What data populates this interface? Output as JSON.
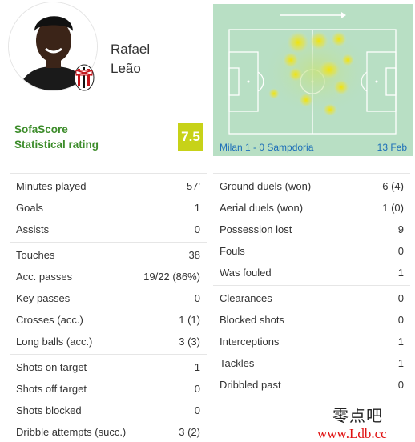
{
  "player": {
    "first_name": "Rafael",
    "last_name": "Leão"
  },
  "rating": {
    "label_line1": "SofaScore",
    "label_line2": "Statistical rating",
    "value": "7.5",
    "color": "#c7d218"
  },
  "match": {
    "label": "Milan 1 - 0 Sampdoria",
    "date": "13 Feb"
  },
  "stats_left": [
    [
      {
        "label": "Minutes played",
        "value": "57'"
      },
      {
        "label": "Goals",
        "value": "1"
      },
      {
        "label": "Assists",
        "value": "0"
      }
    ],
    [
      {
        "label": "Touches",
        "value": "38"
      },
      {
        "label": "Acc. passes",
        "value": "19/22 (86%)"
      },
      {
        "label": "Key passes",
        "value": "0"
      },
      {
        "label": "Crosses (acc.)",
        "value": "1 (1)"
      },
      {
        "label": "Long balls (acc.)",
        "value": "3 (3)"
      }
    ],
    [
      {
        "label": "Shots on target",
        "value": "1"
      },
      {
        "label": "Shots off target",
        "value": "0"
      },
      {
        "label": "Shots blocked",
        "value": "0"
      },
      {
        "label": "Dribble attempts (succ.)",
        "value": "3 (2)"
      }
    ]
  ],
  "stats_right": [
    [
      {
        "label": "Ground duels (won)",
        "value": "6 (4)"
      },
      {
        "label": "Aerial duels (won)",
        "value": "1 (0)"
      },
      {
        "label": "Possession lost",
        "value": "9"
      },
      {
        "label": "Fouls",
        "value": "0"
      },
      {
        "label": "Was fouled",
        "value": "1"
      }
    ],
    [
      {
        "label": "Clearances",
        "value": "0"
      },
      {
        "label": "Blocked shots",
        "value": "0"
      },
      {
        "label": "Interceptions",
        "value": "1"
      },
      {
        "label": "Tackles",
        "value": "1"
      },
      {
        "label": "Dribbled past",
        "value": "0"
      }
    ]
  ],
  "watermark": {
    "chinese": "零点吧",
    "url": "www.Ldb.cc"
  }
}
